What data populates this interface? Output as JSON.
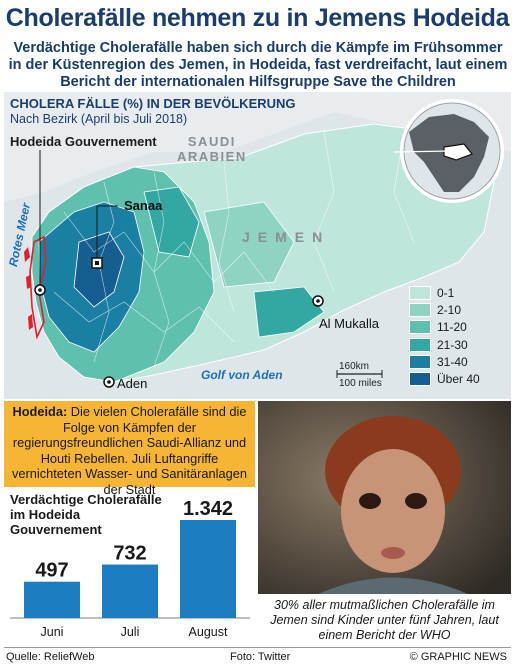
{
  "title": "Cholerafälle nehmen zu in Jemens Hodeida",
  "subtitle": "Verdächtige Cholerafälle haben sich durch die Kämpfe im Frühsommer in der Küstenregion des Jemen, in Hodeida, fast verdreifacht, laut einem Bericht der internationalen Hilfsgruppe Save the Children",
  "map": {
    "heading": "CHOLERA FÄLLE (%) IN DER BEVÖLKERUNG",
    "subheading": "Nach Bezirk (April bis Juli 2018)",
    "governorate_label": "Hodeida Gouvernement",
    "labels": {
      "saudi_line1": "SAUDI",
      "saudi_line2": "ARABIEN",
      "jemen": "JEMEN",
      "sanaa": "Sanaa",
      "al_mukalla": "Al Mukalla",
      "aden": "Aden",
      "golf": "Golf von Aden",
      "rotes_meer": "Rotes Meer",
      "scale_km": "160km",
      "scale_miles": "100 miles"
    },
    "legend": [
      {
        "label": "0-1",
        "color": "#bfe6dc"
      },
      {
        "label": "2-10",
        "color": "#8fd3c2"
      },
      {
        "label": "11-20",
        "color": "#5fc0ad"
      },
      {
        "label": "21-30",
        "color": "#33a7a1"
      },
      {
        "label": "31-40",
        "color": "#1b7fa4"
      },
      {
        "label": "Über 40",
        "color": "#155e90"
      }
    ]
  },
  "info_box": {
    "lead": "Hodeida:",
    "text": "Die vielen Cholerafälle sind die Folge von Kämpfen der regierungsfreundlichen Saudi-Allianz und Houti Rebellen. Juli Luftangriffe vernichteten Wasser- und Sanitäranlagen der Stadt"
  },
  "chart_data": {
    "type": "bar",
    "title": "Verdächtige Cholerafälle im Hodeida Gouvernement",
    "categories": [
      "Juni",
      "Juli",
      "August"
    ],
    "values": [
      497,
      732,
      1342
    ],
    "value_labels": [
      "497",
      "732",
      "1.342"
    ],
    "color": "#1e7cc0"
  },
  "photo_caption": "30% aller mutmaßlichen Cholerafälle im Jemen sind Kinder unter fünf Jahren, laut einem Bericht der WHO",
  "footer": {
    "source": "Quelle: ReliefWeb",
    "photo": "Foto: Twitter",
    "credit": "© GRAPHIC NEWS"
  }
}
